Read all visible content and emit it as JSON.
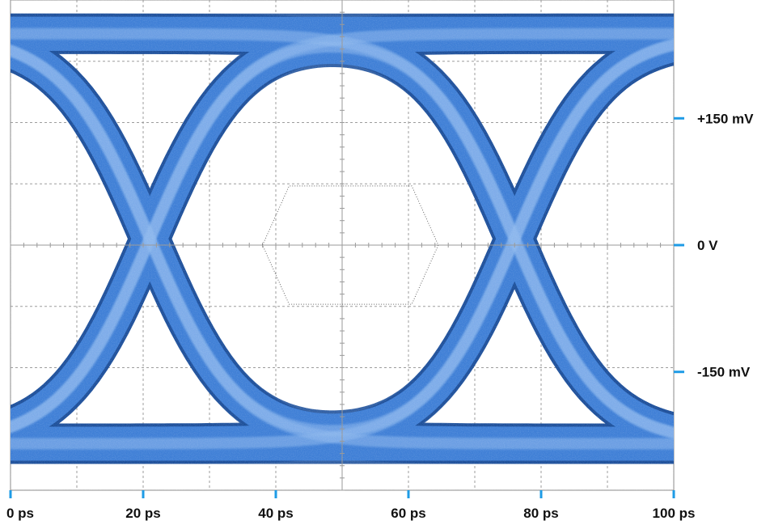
{
  "chart_data": {
    "type": "eye-diagram",
    "x_unit": "ps",
    "x_range": [
      0,
      100
    ],
    "x_ticks": [
      {
        "value": 0,
        "label": "0 ps"
      },
      {
        "value": 20,
        "label": "20 ps"
      },
      {
        "value": 40,
        "label": "40 ps"
      },
      {
        "value": 60,
        "label": "60 ps"
      },
      {
        "value": 80,
        "label": "80 ps"
      },
      {
        "value": 100,
        "label": "100 ps"
      }
    ],
    "y_unit": "mV",
    "y_range": [
      -290,
      290
    ],
    "y_ticks": [
      {
        "value": 150,
        "label": "+150 mV"
      },
      {
        "value": 0,
        "label": "0 V"
      },
      {
        "value": -150,
        "label": "-150 mV"
      }
    ],
    "grid": true,
    "levels_mV": {
      "high": 250,
      "low": -235
    },
    "crossings": [
      {
        "time_ps": 21,
        "voltage_mV": 0
      },
      {
        "time_ps": 76,
        "voltage_mV": 0
      }
    ],
    "mask_polygon": [
      {
        "x": 38,
        "y": 0
      },
      {
        "x": 42,
        "y": 70
      },
      {
        "x": 60.5,
        "y": 70
      },
      {
        "x": 64.5,
        "y": 0
      },
      {
        "x": 60.5,
        "y": -70
      },
      {
        "x": 42,
        "y": -70
      }
    ],
    "colors": {
      "trace": "#3f7fd6",
      "trace_dark": "#1c4f9a",
      "trace_light": "#8fb9ee",
      "grid": "#9a9a9a",
      "axis_tick": "#1e9be6",
      "mask": "#666666"
    }
  }
}
